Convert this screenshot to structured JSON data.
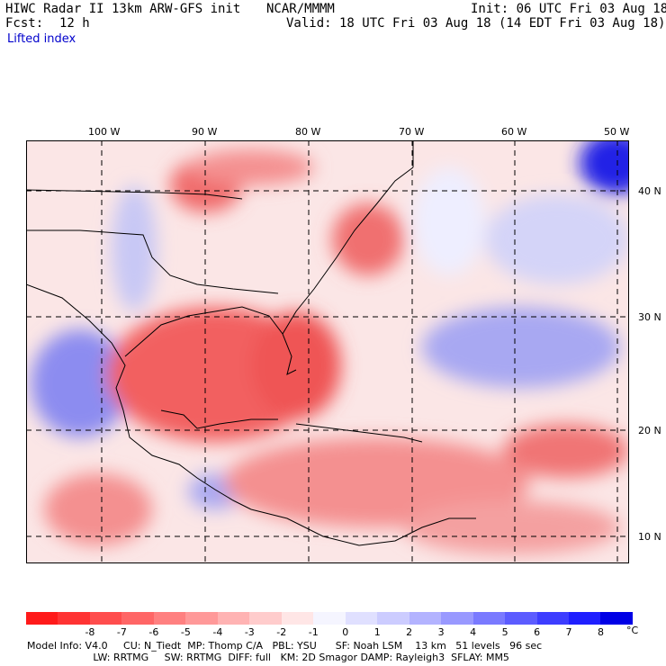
{
  "header": {
    "model": "HIWC Radar II 13km ARW-GFS init",
    "org": "NCAR/MMMM",
    "init": "Init: 06 UTC Fri 03 Aug 18",
    "fcst_label": "Fcst:",
    "fcst_value": "12 h",
    "valid": "Valid: 18 UTC Fri 03 Aug 18 (14 EDT Fri 03 Aug 18)",
    "field": "Lifted index"
  },
  "map": {
    "lon_labels": [
      "100 W",
      "90 W",
      "80 W",
      "70 W",
      "60 W",
      "50 W"
    ],
    "lat_labels": [
      "40 N",
      "30 N",
      "20 N",
      "10 N"
    ]
  },
  "colorbar": {
    "labels": [
      "-8",
      "-7",
      "-6",
      "-5",
      "-4",
      "-3",
      "-2",
      "-1",
      "0",
      "1",
      "2",
      "3",
      "4",
      "5",
      "6",
      "7",
      "8"
    ],
    "unit": "°C",
    "colors": [
      "#ff1a1a",
      "#ff3333",
      "#ff4d4d",
      "#ff6666",
      "#ff8080",
      "#ff9999",
      "#ffb3b3",
      "#ffcccc",
      "#ffe6e6",
      "#f5f5ff",
      "#e0e0ff",
      "#ccccff",
      "#b3b3ff",
      "#9999ff",
      "#7a7aff",
      "#5c5cff",
      "#3d3dff",
      "#1f1fff",
      "#0000e6"
    ]
  },
  "footer": {
    "line1": "Model Info: V4.0     CU: N_Tiedt  MP: Thomp C/A   PBL: YSU      SF: Noah LSM    13 km   51 levels   96 sec",
    "line2": "                     LW: RRTMG     SW: RRTMG  DIFF: full   KM: 2D Smagor DAMP: Rayleigh3  SFLAY: MM5"
  }
}
